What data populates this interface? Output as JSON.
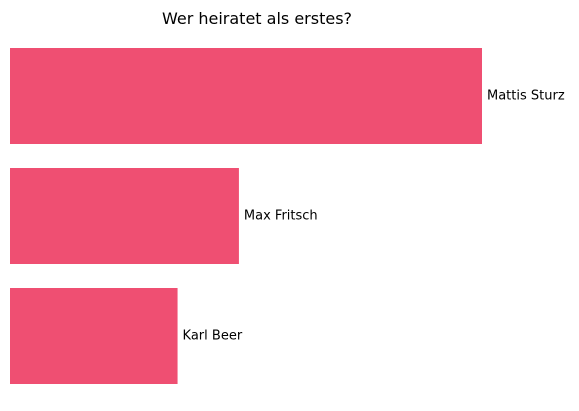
{
  "chart_data": {
    "type": "bar",
    "orientation": "horizontal",
    "title": "Wer heiratet als erstes?",
    "xlabel": "",
    "ylabel": "",
    "grid": false,
    "categories": [
      "Mattis Sturz",
      "Max Fritsch",
      "Karl Beer"
    ],
    "values": [
      100,
      48.5,
      35.5
    ],
    "xlim": [
      0,
      100
    ],
    "bar_color": "#ef4f72"
  }
}
